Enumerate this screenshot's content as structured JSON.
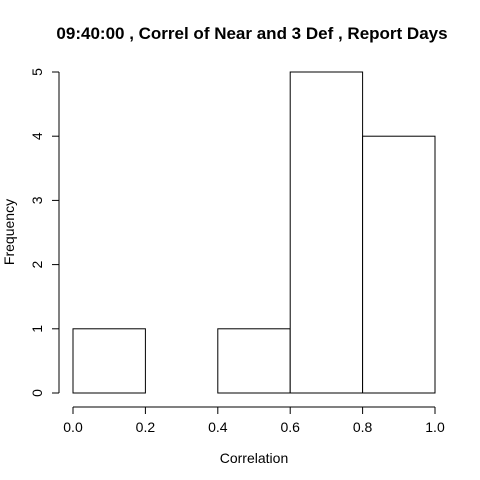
{
  "chart_data": {
    "type": "bar",
    "title": "09:40:00 , Correl of Near and 3 Def , Report Days",
    "xlabel": "Correlation",
    "ylabel": "Frequency",
    "bins": [
      {
        "from": 0.0,
        "to": 0.2,
        "count": 1
      },
      {
        "from": 0.2,
        "to": 0.4,
        "count": 0
      },
      {
        "from": 0.4,
        "to": 0.6,
        "count": 1
      },
      {
        "from": 0.6,
        "to": 0.8,
        "count": 5
      },
      {
        "from": 0.8,
        "to": 1.0,
        "count": 4
      }
    ],
    "xlim": [
      0.0,
      1.0
    ],
    "ylim": [
      0,
      5
    ],
    "xticks": [
      "0.0",
      "0.2",
      "0.4",
      "0.6",
      "0.8",
      "1.0"
    ],
    "yticks": [
      "0",
      "1",
      "2",
      "3",
      "4",
      "5"
    ],
    "grid": false,
    "bar_fill": "#ffffff",
    "bar_stroke": "#000000"
  }
}
